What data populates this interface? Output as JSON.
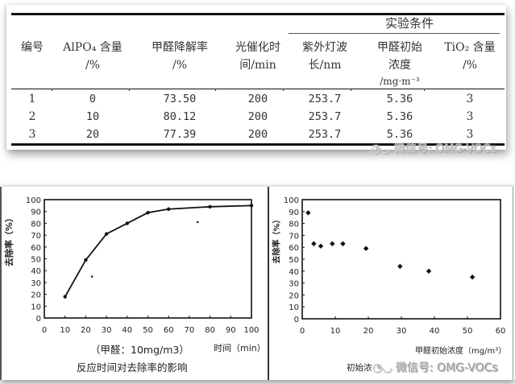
{
  "table": {
    "group_header": "实验条件",
    "columns": [
      {
        "line1": "编号",
        "line2": "",
        "line3": ""
      },
      {
        "line1": "AlPO₄ 含量",
        "line2": "/%",
        "line3": ""
      },
      {
        "line1": "甲醛降解率",
        "line2": "/%",
        "line3": ""
      },
      {
        "line1": "光催化时",
        "line2": "间/min",
        "line3": ""
      },
      {
        "line1": "紫外灯波",
        "line2": "长/nm",
        "line3": ""
      },
      {
        "line1": "甲醛初始",
        "line2": "浓度",
        "line3": "/mg·m⁻³"
      },
      {
        "line1": "TiO₂ 含量",
        "line2": "/%",
        "line3": ""
      }
    ],
    "rows": [
      [
        "1",
        "0",
        "73.50",
        "200",
        "253.7",
        "5.36",
        "3"
      ],
      [
        "2",
        "10",
        "80.12",
        "200",
        "253.7",
        "5.36",
        "3"
      ],
      [
        "3",
        "20",
        "77.39",
        "200",
        "253.7",
        "5.36",
        "3"
      ]
    ]
  },
  "watermark": {
    "top": "微信号: OMG-VOCs",
    "bottom": "微信号: OMG-VOCs"
  },
  "chart_data": [
    {
      "type": "line",
      "title": "反应时间对去除率的影响",
      "subtitle": "（甲醛：10mg/m3）",
      "xlabel": "时间（min）",
      "ylabel": "去除率（%）",
      "xlim": [
        0,
        100
      ],
      "ylim": [
        0,
        100
      ],
      "xticks": [
        "0",
        "10",
        "20",
        "30",
        "40",
        "50",
        "60",
        "70",
        "80",
        "90",
        "100"
      ],
      "yticks": [
        "0",
        "10",
        "20",
        "30",
        "40",
        "50",
        "60",
        "70",
        "80",
        "90",
        "100"
      ],
      "grid": false,
      "series": [
        {
          "name": "去除率",
          "x": [
            10,
            20,
            30,
            40,
            50,
            60,
            80,
            100
          ],
          "y": [
            18,
            49,
            71,
            80,
            89,
            92,
            94,
            95
          ]
        }
      ],
      "stray_points": [
        {
          "x": 23,
          "y": 35
        },
        {
          "x": 74,
          "y": 81
        }
      ]
    },
    {
      "type": "scatter",
      "title": "初始浓度对去除率的影响",
      "xlabel": "甲醛初始浓度（mg/m³）",
      "ylabel": "去除率（%）",
      "xlim": [
        0,
        60
      ],
      "ylim": [
        0,
        100
      ],
      "xticks": [
        "0",
        "10",
        "20",
        "30",
        "40",
        "50",
        "60"
      ],
      "yticks": [
        "0",
        "10",
        "20",
        "30",
        "40",
        "50",
        "60",
        "70",
        "80",
        "90",
        "100"
      ],
      "grid": false,
      "series": [
        {
          "name": "去除率",
          "x": [
            1.8,
            3.5,
            5.6,
            9.1,
            12.3,
            19.3,
            29.6,
            38.3,
            51.5
          ],
          "y": [
            89,
            63,
            61,
            63,
            63,
            59,
            44,
            40,
            35
          ]
        }
      ]
    }
  ],
  "chart_labels": {
    "left_title": "反应时间对去除率的影响",
    "left_subtitle": "（甲醛：10mg/m3）",
    "left_xlabel": "时间（min）",
    "left_ylabel": "去除率（%）",
    "right_title_visible": "初始浓",
    "right_xlabel": "甲醛初始浓度（mg/m³）",
    "right_ylabel": "去除率（%）"
  }
}
